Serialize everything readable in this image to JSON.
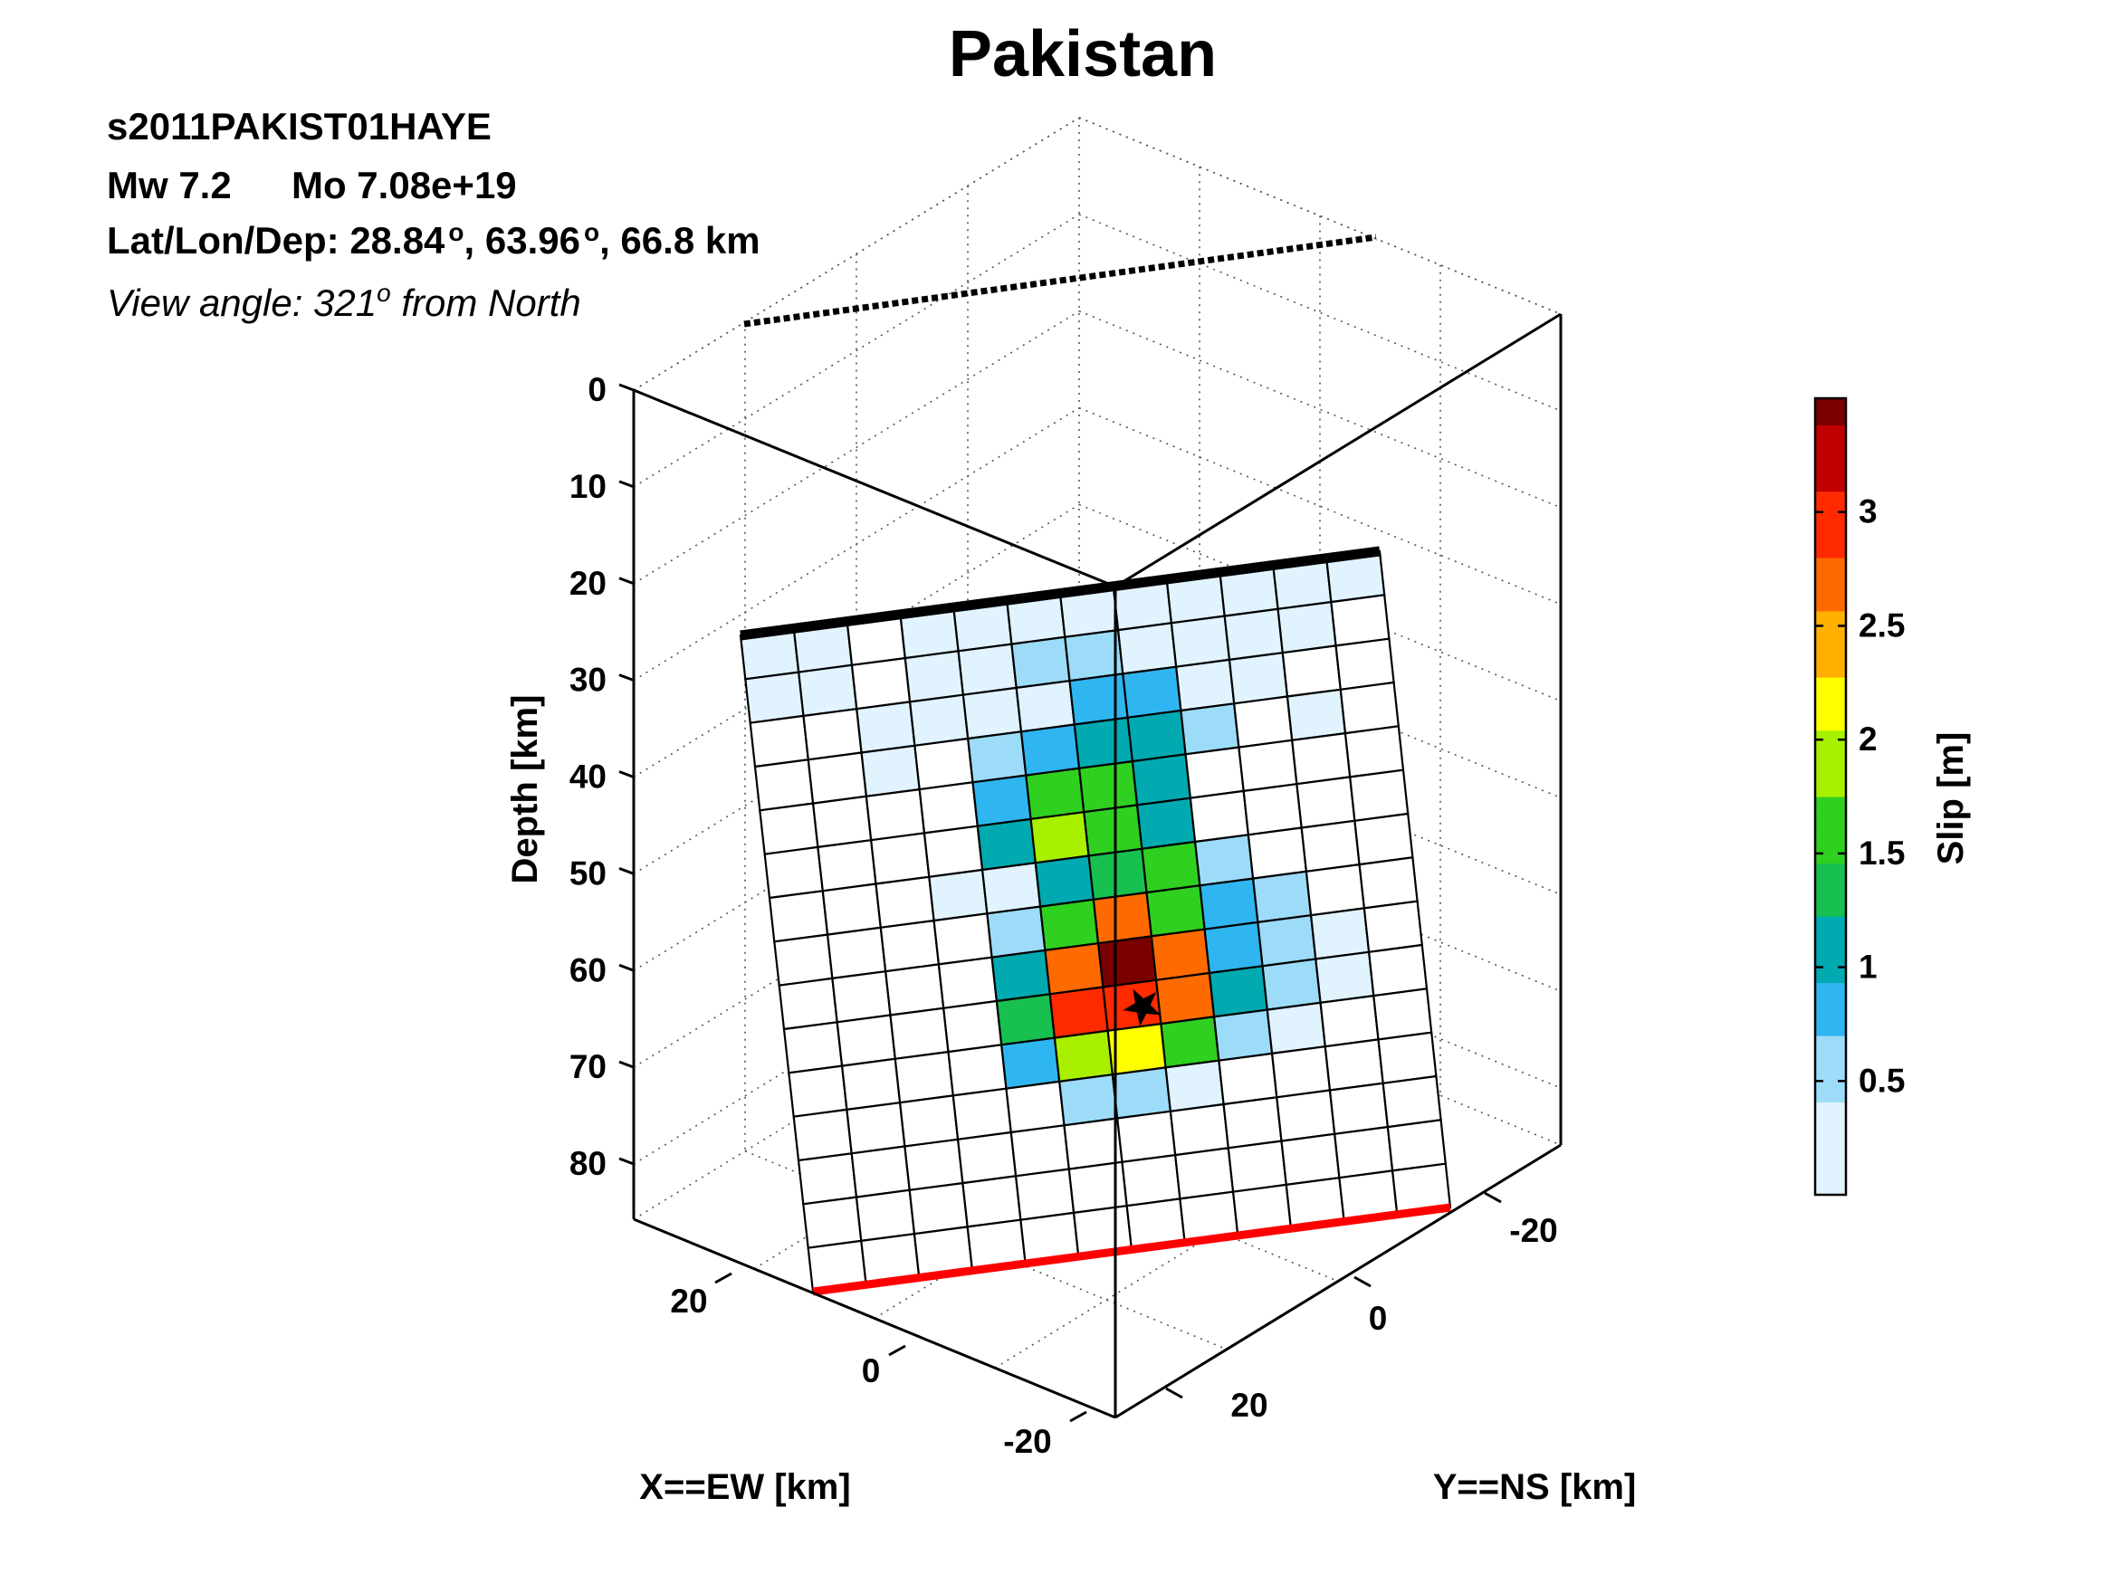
{
  "chart_data": {
    "type": "heatmap",
    "title": "Pakistan",
    "event_id": "s2011PAKIST01HAYE",
    "magnitude_line": {
      "mw": "Mw 7.2",
      "mo": "Mo 7.08e+19"
    },
    "location_line": {
      "prefix": "Lat/Lon/Dep: ",
      "lat": "28.84",
      "lon": "63.96",
      "dep": ", 66.8 km",
      "degree_symbol": "o",
      "separator": ", "
    },
    "view_line": {
      "prefix": "View angle: ",
      "angle": "321",
      "degree_symbol": "o",
      "suffix": " from North"
    },
    "zlabel": "Depth [km]",
    "xlabel": "X==EW [km]",
    "ylabel": "Y==NS [km]",
    "colorbar_label": "Slip [m]",
    "depth_ticks": [
      "0",
      "10",
      "20",
      "30",
      "40",
      "50",
      "60",
      "70",
      "80"
    ],
    "x_ticks": [
      "20",
      "0",
      "-20"
    ],
    "y_ticks": [
      "-20",
      "0",
      "20"
    ],
    "colorbar_ticks": [
      "0.5",
      "1",
      "1.5",
      "2",
      "2.5",
      "3"
    ],
    "colorbar_range": [
      0,
      3.5
    ],
    "grid": true,
    "colormap": [
      "#ffffff",
      "#e0f3ff",
      "#9ddcf8",
      "#2fb6f0",
      "#00aab0",
      "#18c050",
      "#2fd020",
      "#a8f000",
      "#ffff00",
      "#ffb000",
      "#ff6a00",
      "#ff2a00",
      "#c00000",
      "#7a0000"
    ],
    "top_edge_color": "#000000",
    "bottom_edge_color": "#ff0000",
    "hypocenter_marker": "star-icon",
    "grid_size": {
      "columns": 12,
      "rows": 15
    },
    "slip": [
      [
        0.12,
        0.22,
        0,
        0.25,
        0.3,
        0.25,
        0.3,
        0.2,
        0.12,
        0.2,
        0.3,
        0.1
      ],
      [
        0.25,
        0.25,
        0,
        0.35,
        0.4,
        0.45,
        0.45,
        0.35,
        0.25,
        0.15,
        0.3,
        0
      ],
      [
        0,
        0,
        0.1,
        0.15,
        0.18,
        0.4,
        0.8,
        0.85,
        0.25,
        0.15,
        0,
        0
      ],
      [
        0,
        0,
        0.15,
        0,
        0.45,
        0.8,
        1.2,
        1.2,
        0.6,
        0,
        0.08,
        0
      ],
      [
        0,
        0,
        0,
        0,
        0.75,
        1.6,
        1.5,
        1.1,
        0,
        0,
        0,
        0
      ],
      [
        0,
        0,
        0,
        0,
        1.2,
        1.75,
        1.6,
        1.15,
        0,
        0,
        0,
        0
      ],
      [
        0,
        0,
        0,
        0.12,
        0.12,
        1.1,
        1.4,
        1.6,
        0.5,
        0,
        0,
        0
      ],
      [
        0,
        0,
        0,
        0,
        0.55,
        1.65,
        2.7,
        1.7,
        0.9,
        0.5,
        0,
        0
      ],
      [
        0,
        0,
        0,
        0,
        1.1,
        2.7,
        3.45,
        2.6,
        0.85,
        0.6,
        0.3,
        0
      ],
      [
        0,
        0,
        0,
        0,
        1.3,
        3.0,
        3.0,
        2.6,
        1.1,
        0.45,
        0.15,
        0
      ],
      [
        0,
        0,
        0,
        0,
        0.9,
        1.85,
        2.2,
        1.55,
        0.5,
        0.1,
        0,
        0
      ],
      [
        0,
        0,
        0,
        0,
        0,
        0.45,
        0.5,
        0.25,
        0,
        0,
        0,
        0
      ],
      [
        0,
        0,
        0,
        0,
        0,
        0,
        0,
        0,
        0,
        0,
        0,
        0
      ],
      [
        0,
        0,
        0,
        0,
        0,
        0,
        0,
        0,
        0,
        0,
        0,
        0
      ],
      [
        0,
        0,
        0,
        0,
        0,
        0,
        0,
        0,
        0,
        0,
        0,
        0
      ]
    ]
  }
}
